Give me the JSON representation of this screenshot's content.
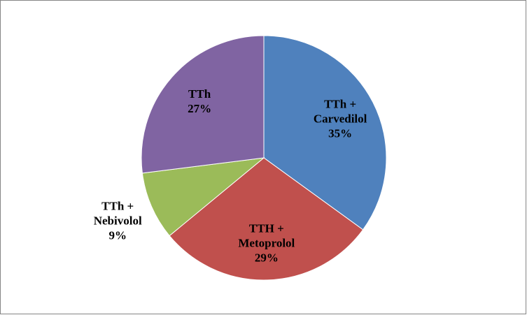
{
  "chart_data": {
    "type": "pie",
    "categories": [
      "TTh + Carvedilol",
      "TTH + Metoprolol",
      "TTh + Nebivolol",
      "TTh"
    ],
    "values": [
      35,
      29,
      9,
      27
    ],
    "value_labels": [
      "35%",
      "29%",
      "9%",
      "27%"
    ],
    "colors": [
      "#4f81bd",
      "#c0504d",
      "#9bbb59",
      "#8064a2"
    ]
  }
}
